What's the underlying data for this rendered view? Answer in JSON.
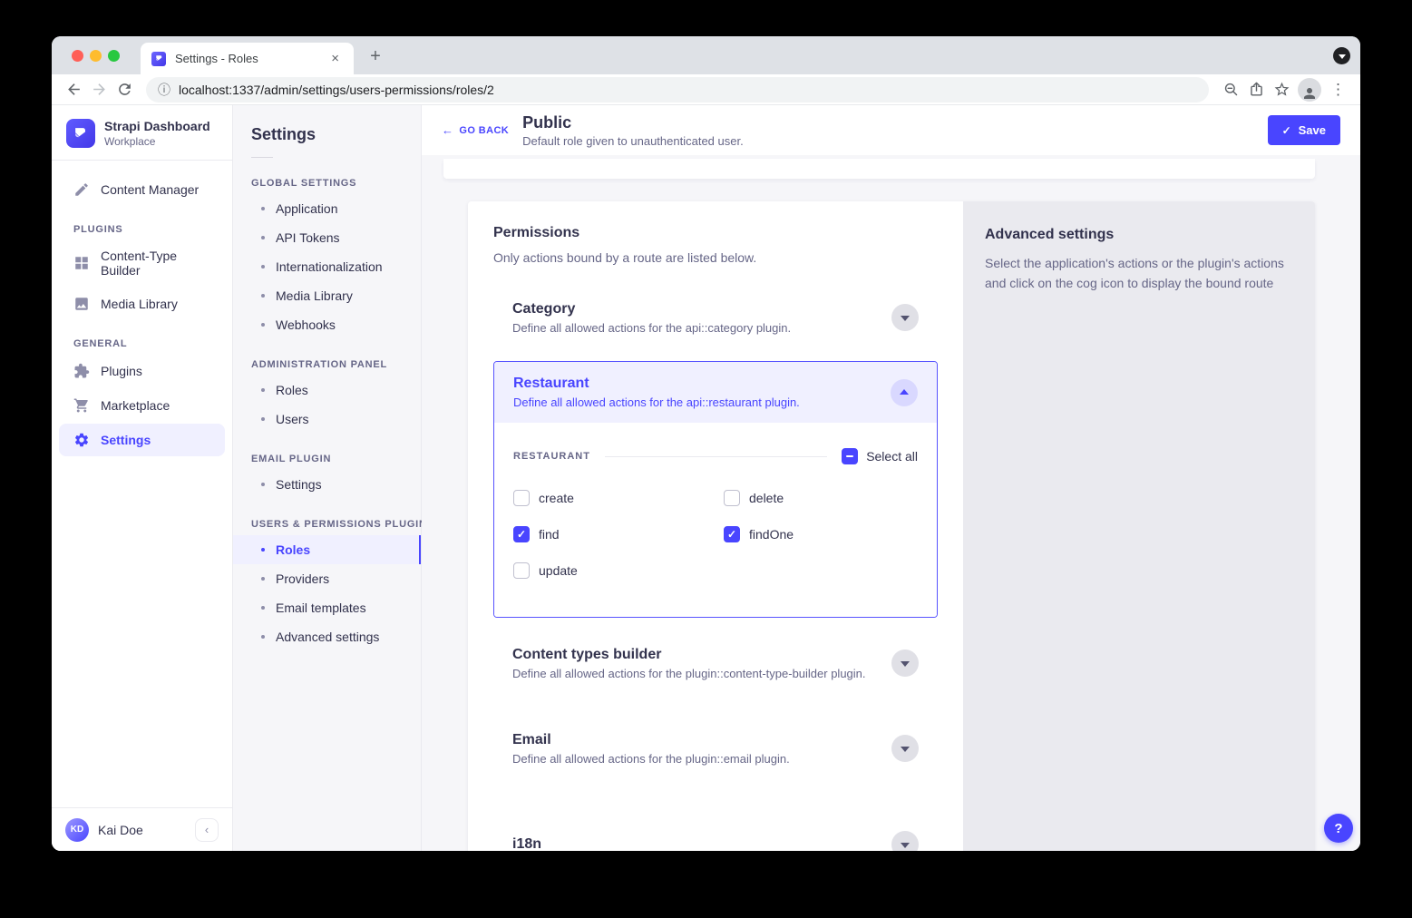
{
  "colors": {
    "accent": "#4945ff",
    "accent_light": "#f0f0ff",
    "text": "#32324d",
    "text_muted": "#666687",
    "panel_gray": "#eaeaef"
  },
  "browser": {
    "tab": {
      "title": "Settings - Roles",
      "close_glyph": "×"
    },
    "newtab_glyph": "+",
    "info_glyph": "ⓘ",
    "url": "localhost:1337/admin/settings/users-permissions/roles/2",
    "menu_glyph": "⋮"
  },
  "sidebar": {
    "brand": {
      "title": "Strapi Dashboard",
      "subtitle": "Workplace"
    },
    "top_items": [
      {
        "label": "Content Manager"
      }
    ],
    "sections": [
      {
        "label": "PLUGINS",
        "items": [
          {
            "label": "Content-Type Builder"
          },
          {
            "label": "Media Library"
          }
        ]
      },
      {
        "label": "GENERAL",
        "items": [
          {
            "label": "Plugins"
          },
          {
            "label": "Marketplace"
          },
          {
            "label": "Settings",
            "active": true
          }
        ]
      }
    ],
    "user": {
      "initials": "KD",
      "name": "Kai Doe"
    },
    "collapse_glyph": "‹"
  },
  "subnav": {
    "title": "Settings",
    "sections": [
      {
        "label": "GLOBAL SETTINGS",
        "items": [
          {
            "label": "Application"
          },
          {
            "label": "API Tokens"
          },
          {
            "label": "Internationalization"
          },
          {
            "label": "Media Library"
          },
          {
            "label": "Webhooks"
          }
        ]
      },
      {
        "label": "ADMINISTRATION PANEL",
        "items": [
          {
            "label": "Roles"
          },
          {
            "label": "Users"
          }
        ]
      },
      {
        "label": "EMAIL PLUGIN",
        "items": [
          {
            "label": "Settings"
          }
        ]
      },
      {
        "label": "USERS & PERMISSIONS PLUGIN",
        "items": [
          {
            "label": "Roles",
            "active": true
          },
          {
            "label": "Providers"
          },
          {
            "label": "Email templates"
          },
          {
            "label": "Advanced settings"
          }
        ]
      }
    ]
  },
  "header": {
    "back_glyph": "←",
    "back_label": "GO BACK",
    "title": "Public",
    "subtitle": "Default role given to unauthenticated user.",
    "save_glyph": "✓",
    "save_label": "Save"
  },
  "permissions": {
    "title": "Permissions",
    "subtitle": "Only actions bound by a route are listed below.",
    "accordions": [
      {
        "title": "Category",
        "description": "Define all allowed actions for the api::category plugin.",
        "expanded": false
      },
      {
        "title": "Restaurant",
        "description": "Define all allowed actions for the api::restaurant plugin.",
        "expanded": true,
        "group_label": "RESTAURANT",
        "select_all": {
          "label": "Select all",
          "state": "indeterminate"
        },
        "actions": [
          {
            "label": "create",
            "checked": false
          },
          {
            "label": "delete",
            "checked": false
          },
          {
            "label": "find",
            "checked": true
          },
          {
            "label": "findOne",
            "checked": true
          },
          {
            "label": "update",
            "checked": false
          }
        ]
      },
      {
        "title": "Content types builder",
        "description": "Define all allowed actions for the plugin::content-type-builder plugin.",
        "expanded": false
      },
      {
        "title": "Email",
        "description": "Define all allowed actions for the plugin::email plugin.",
        "expanded": false
      },
      {
        "title": "i18n",
        "description": "",
        "expanded": false
      }
    ]
  },
  "advanced_settings": {
    "title": "Advanced settings",
    "description": "Select the application's actions or the plugin's actions and click on the cog icon to display the bound route"
  },
  "help_glyph": "?",
  "check_glyph": "✓"
}
